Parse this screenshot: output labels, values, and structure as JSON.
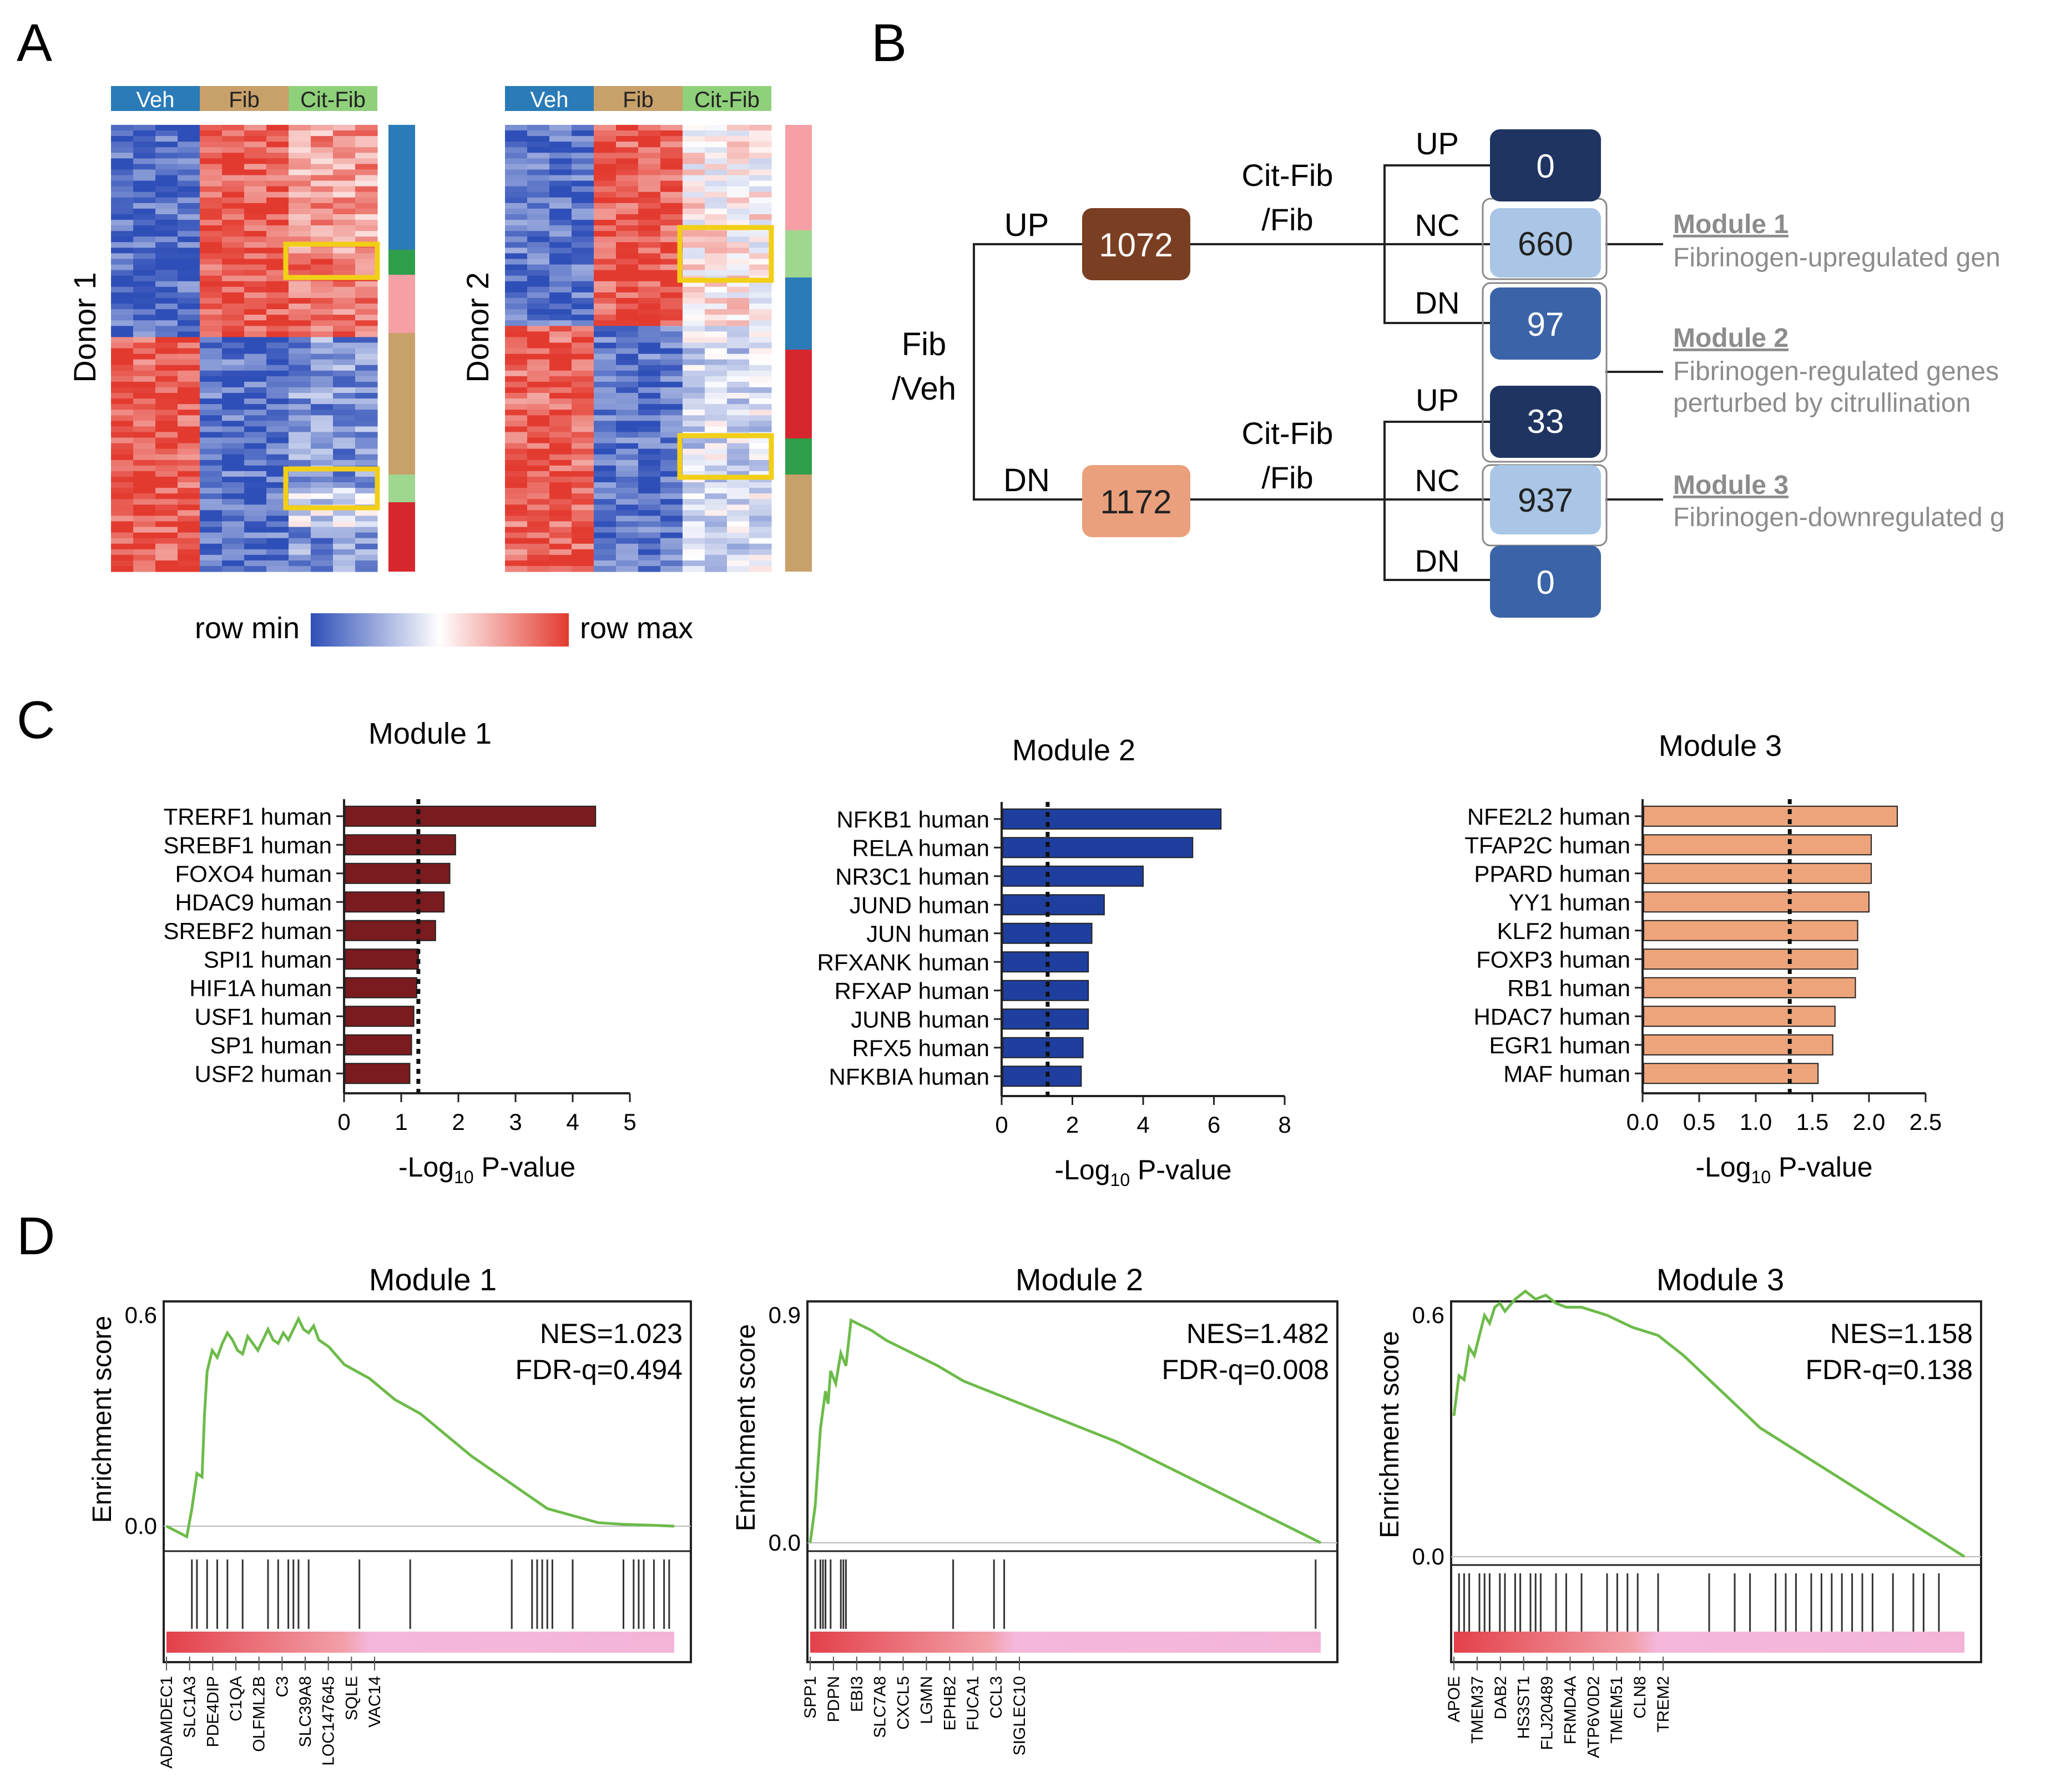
{
  "panel_labels": {
    "a": "A",
    "b": "B",
    "c": "C",
    "d": "D"
  },
  "heatmaps": {
    "groups": [
      "Veh",
      "Fib",
      "Cit-Fib"
    ],
    "group_colors": [
      "#2a7bb8",
      "#c8a06a",
      "#8fd07a"
    ],
    "donors": [
      "Donor 1",
      "Donor 2"
    ],
    "legend_min": "row min",
    "legend_max": "row max",
    "module_colors": {
      "up_fib": "#2a7bb8",
      "module_green": "#2e9e4a",
      "light_green": "#9fd78f",
      "pink": "#f4a0a4",
      "tan": "#c8a06a",
      "red": "#d6272e",
      "highlight": "#f2cf17"
    }
  },
  "flow": {
    "root": {
      "line1": "Fib",
      "line2": "/Veh"
    },
    "up_label": "UP",
    "dn_label": "DN",
    "up_count": "1072",
    "dn_count": "1172",
    "cit_label_line1": "Cit-Fib",
    "cit_label_line2": "/Fib",
    "upper_leaves": [
      {
        "label": "UP",
        "count": "0",
        "color": "#1f3461"
      },
      {
        "label": "NC",
        "count": "660",
        "color": "#a9c6e6"
      },
      {
        "label": "DN",
        "count": "97",
        "color": "#3b64a8"
      }
    ],
    "lower_leaves": [
      {
        "label": "UP",
        "count": "33",
        "color": "#1f3461"
      },
      {
        "label": "NC",
        "count": "937",
        "color": "#a9c6e6"
      },
      {
        "label": "DN",
        "count": "0",
        "color": "#3b64a8"
      }
    ],
    "modules": [
      {
        "title": "Module 1",
        "desc": [
          "Fibrinogen-upregulated gen"
        ]
      },
      {
        "title": "Module 2",
        "desc": [
          "Fibrinogen-regulated genes",
          "perturbed by citrullination"
        ]
      },
      {
        "title": "Module 3",
        "desc": [
          "Fibrinogen-downregulated g"
        ]
      }
    ],
    "up_box_color": "#7a3f22",
    "dn_box_color": "#eaa07c"
  },
  "chart_data": [
    {
      "type": "bar",
      "orientation": "horizontal",
      "title": "Module 1",
      "xlabel": "-Log10 P-value",
      "xlabel_main": "-Log",
      "xlabel_sub": "10",
      "xlabel_tail": " P-value",
      "categories": [
        "TRERF1 human",
        "SREBF1 human",
        "FOXO4 human",
        "HDAC9 human",
        "SREBF2 human",
        "SPI1 human",
        "HIF1A human",
        "USF1 human",
        "SP1 human",
        "USF2 human"
      ],
      "values": [
        4.4,
        1.95,
        1.85,
        1.75,
        1.6,
        1.3,
        1.27,
        1.22,
        1.18,
        1.15
      ],
      "xlim": [
        0,
        5
      ],
      "ticks": [
        "0",
        "1",
        "2",
        "3",
        "4",
        "5"
      ],
      "threshold": 1.3,
      "color": "#7a1b1f"
    },
    {
      "type": "bar",
      "orientation": "horizontal",
      "title": "Module 2",
      "xlabel": "-Log10 P-value",
      "xlabel_main": "-Log",
      "xlabel_sub": "10",
      "xlabel_tail": " P-value",
      "categories": [
        "NFKB1 human",
        "RELA human",
        "NR3C1 human",
        "JUND human",
        "JUN human",
        "RFXANK human",
        "RFXAP human",
        "JUNB human",
        "RFX5 human",
        "NFKBIA human"
      ],
      "values": [
        6.2,
        5.4,
        4.0,
        2.9,
        2.55,
        2.45,
        2.45,
        2.45,
        2.3,
        2.25
      ],
      "xlim": [
        0,
        8
      ],
      "ticks": [
        "0",
        "2",
        "4",
        "6",
        "8"
      ],
      "threshold": 1.3,
      "color": "#1f3f9e"
    },
    {
      "type": "bar",
      "orientation": "horizontal",
      "title": "Module 3",
      "xlabel": "-Log10 P-value",
      "xlabel_main": "-Log",
      "xlabel_sub": "10",
      "xlabel_tail": " P-value",
      "categories": [
        "NFE2L2 human",
        "TFAP2C human",
        "PPARD human",
        "YY1 human",
        "KLF2 human",
        "FOXP3 human",
        "RB1 human",
        "HDAC7 human",
        "EGR1 human",
        "MAF human"
      ],
      "values": [
        2.25,
        2.02,
        2.02,
        2.0,
        1.9,
        1.9,
        1.88,
        1.7,
        1.68,
        1.55
      ],
      "xlim": [
        0,
        2.5
      ],
      "ticks": [
        "0.0",
        "0.5",
        "1.0",
        "1.5",
        "2.0",
        "2.5"
      ],
      "threshold": 1.3,
      "color": "#eea47a"
    },
    {
      "type": "line",
      "title": "Module 1",
      "ylabel": "Enrichment score",
      "ylim": [
        -0.05,
        0.6
      ],
      "yticks": [
        {
          "v": 0.6,
          "label": "0.6"
        },
        {
          "v": 0.0,
          "label": "0.0"
        }
      ],
      "nes": "NES=1.023",
      "fdr": "FDR-q=0.494",
      "x": [
        0,
        0.04,
        0.05,
        0.06,
        0.07,
        0.075,
        0.08,
        0.09,
        0.1,
        0.11,
        0.12,
        0.13,
        0.14,
        0.15,
        0.16,
        0.18,
        0.2,
        0.21,
        0.22,
        0.23,
        0.24,
        0.25,
        0.26,
        0.27,
        0.28,
        0.29,
        0.3,
        0.32,
        0.35,
        0.4,
        0.45,
        0.5,
        0.55,
        0.6,
        0.65,
        0.7,
        0.75,
        0.8,
        0.85,
        0.9,
        0.95,
        1.0
      ],
      "y": [
        0.0,
        -0.03,
        0.05,
        0.15,
        0.14,
        0.32,
        0.44,
        0.5,
        0.48,
        0.52,
        0.55,
        0.53,
        0.5,
        0.49,
        0.54,
        0.5,
        0.56,
        0.53,
        0.52,
        0.55,
        0.53,
        0.56,
        0.59,
        0.56,
        0.55,
        0.57,
        0.53,
        0.51,
        0.46,
        0.42,
        0.36,
        0.32,
        0.26,
        0.2,
        0.15,
        0.1,
        0.05,
        0.03,
        0.01,
        0.005,
        0.003,
        0.0
      ],
      "hits": [
        0.05,
        0.06,
        0.08,
        0.1,
        0.12,
        0.15,
        0.2,
        0.22,
        0.24,
        0.25,
        0.26,
        0.28,
        0.38,
        0.48,
        0.68,
        0.72,
        0.73,
        0.74,
        0.75,
        0.76,
        0.8,
        0.9,
        0.92,
        0.93,
        0.94,
        0.96,
        0.98,
        0.99
      ],
      "genes": [
        "ADAMDEC1",
        "SLC1A3",
        "PDE4DIP",
        "C1QA",
        "OLFML2B",
        "C3",
        "SLC39A8",
        "LOC147645",
        "SQLE",
        "VAC14"
      ],
      "line_color": "#6dbb4a"
    },
    {
      "type": "line",
      "title": "Module 2",
      "ylabel": "Enrichment score",
      "ylim": [
        -0.02,
        0.9
      ],
      "yticks": [
        {
          "v": 0.9,
          "label": "0.9"
        },
        {
          "v": 0.0,
          "label": "0.0"
        }
      ],
      "nes": "NES=1.482",
      "fdr": "FDR-q=0.008",
      "x": [
        0,
        0.01,
        0.02,
        0.03,
        0.035,
        0.04,
        0.05,
        0.06,
        0.07,
        0.08,
        0.1,
        0.12,
        0.15,
        0.2,
        0.25,
        0.3,
        0.35,
        0.4,
        0.5,
        0.6,
        0.7,
        0.8,
        0.9,
        1.0
      ],
      "y": [
        0.0,
        0.15,
        0.45,
        0.6,
        0.55,
        0.68,
        0.63,
        0.75,
        0.7,
        0.88,
        0.86,
        0.84,
        0.8,
        0.75,
        0.7,
        0.64,
        0.6,
        0.56,
        0.48,
        0.4,
        0.3,
        0.2,
        0.1,
        0.0
      ],
      "hits": [
        0.01,
        0.02,
        0.025,
        0.03,
        0.04,
        0.06,
        0.065,
        0.07,
        0.28,
        0.36,
        0.38,
        0.99
      ],
      "genes": [
        "SPP1",
        "PDPN",
        "EBI3",
        "SLC7A8",
        "CXCL5",
        "LGMN",
        "EPHB2",
        "FUCA1",
        "CCL3",
        "SIGLEC10"
      ],
      "line_color": "#6dbb4a"
    },
    {
      "type": "line",
      "title": "Module 3",
      "ylabel": "Enrichment score",
      "ylim": [
        -0.02,
        0.68
      ],
      "yticks": [
        {
          "v": 0.6,
          "label": "0.6"
        },
        {
          "v": 0.0,
          "label": "0.0"
        }
      ],
      "nes": "NES=1.158",
      "fdr": "FDR-q=0.138",
      "x": [
        0,
        0.01,
        0.02,
        0.03,
        0.04,
        0.05,
        0.06,
        0.07,
        0.08,
        0.09,
        0.1,
        0.12,
        0.14,
        0.16,
        0.18,
        0.2,
        0.22,
        0.25,
        0.3,
        0.35,
        0.4,
        0.45,
        0.5,
        0.55,
        0.6,
        0.7,
        0.8,
        0.9,
        0.95,
        1.0
      ],
      "y": [
        0.35,
        0.45,
        0.44,
        0.52,
        0.5,
        0.55,
        0.6,
        0.58,
        0.62,
        0.63,
        0.61,
        0.64,
        0.66,
        0.64,
        0.65,
        0.63,
        0.62,
        0.62,
        0.6,
        0.57,
        0.55,
        0.5,
        0.44,
        0.38,
        0.32,
        0.24,
        0.16,
        0.08,
        0.04,
        0.0
      ],
      "hits": [
        0.01,
        0.02,
        0.03,
        0.05,
        0.06,
        0.07,
        0.09,
        0.1,
        0.12,
        0.13,
        0.15,
        0.16,
        0.17,
        0.2,
        0.22,
        0.25,
        0.3,
        0.32,
        0.34,
        0.36,
        0.4,
        0.5,
        0.55,
        0.58,
        0.63,
        0.65,
        0.67,
        0.7,
        0.72,
        0.74,
        0.76,
        0.78,
        0.8,
        0.82,
        0.86,
        0.9,
        0.92,
        0.95
      ],
      "genes": [
        "APOE",
        "TMEM37",
        "DAB2",
        "HS3ST1",
        "FLJ20489",
        "FRMD4A",
        "ATP6V0D2",
        "TMEM51",
        "CLN8",
        "TREM2"
      ],
      "line_color": "#6dbb4a"
    }
  ]
}
